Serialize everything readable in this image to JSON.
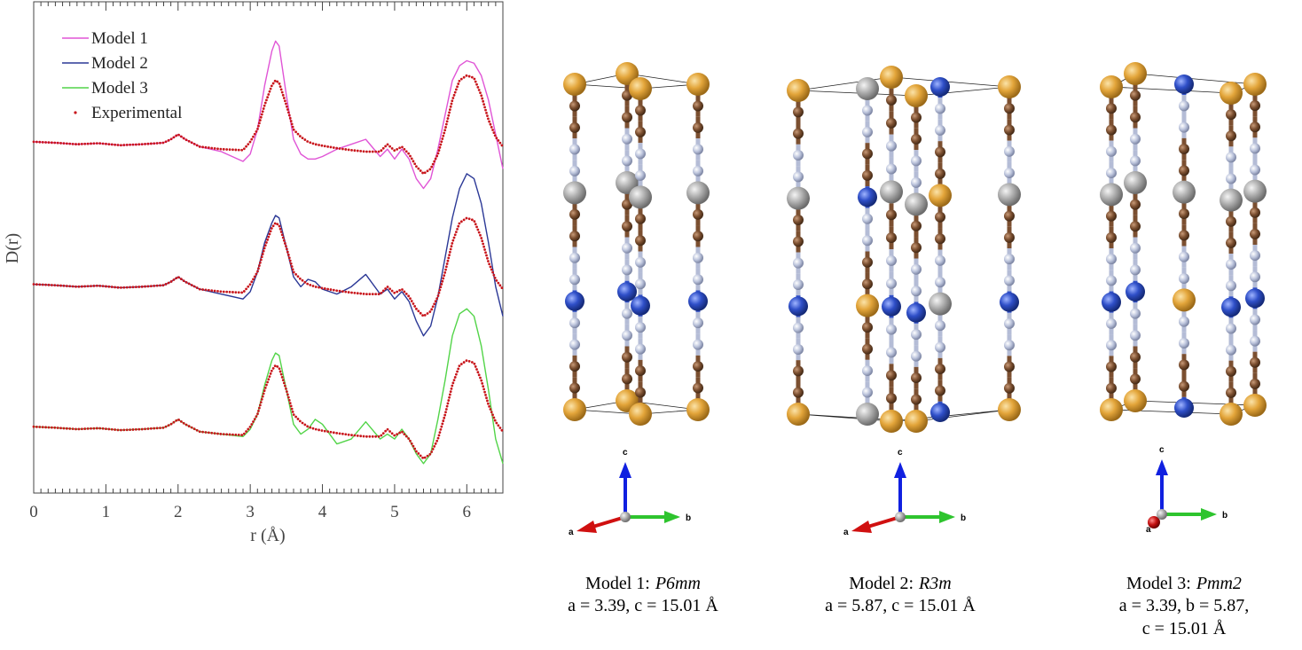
{
  "chart_data": {
    "type": "line",
    "xlabel": "r (Å)",
    "ylabel": "D(r)",
    "xlim": [
      0,
      6.5
    ],
    "ylim": [
      0,
      100
    ],
    "xticks": [
      0,
      1,
      2,
      3,
      4,
      5,
      6
    ],
    "legend": "upper left",
    "x": [
      0,
      0.3,
      0.6,
      0.9,
      1.2,
      1.5,
      1.8,
      1.9,
      2.0,
      2.1,
      2.3,
      2.6,
      2.9,
      3.0,
      3.1,
      3.2,
      3.3,
      3.35,
      3.4,
      3.5,
      3.6,
      3.7,
      3.8,
      3.9,
      4.0,
      4.2,
      4.4,
      4.6,
      4.8,
      4.9,
      5.0,
      5.1,
      5.2,
      5.3,
      5.4,
      5.5,
      5.6,
      5.7,
      5.8,
      5.9,
      6.0,
      6.1,
      6.2,
      6.3,
      6.4,
      6.5
    ],
    "series": [
      {
        "name": "Model 1",
        "color": "#e055d6",
        "style": "line",
        "values": [
          71.5,
          71.3,
          71,
          71.2,
          70.8,
          71,
          71.3,
          72,
          73,
          72,
          70.5,
          69.5,
          67.5,
          69,
          74,
          83,
          90,
          92,
          91,
          81,
          72,
          69,
          68,
          68,
          68.5,
          70,
          71,
          72,
          68.5,
          70,
          68,
          70,
          68,
          64,
          62,
          64,
          70,
          77,
          84,
          87,
          88,
          87.5,
          85,
          80,
          73,
          66
        ]
      },
      {
        "name": "Model 2",
        "color": "#2b3896",
        "style": "line",
        "values": [
          42.5,
          42.3,
          42,
          42.2,
          41.8,
          42,
          42.3,
          43,
          44,
          43,
          41.5,
          40.5,
          39.5,
          41,
          45,
          51,
          55,
          56.5,
          56,
          50,
          44,
          42,
          43.5,
          43,
          41.5,
          40.5,
          42,
          44.5,
          40.5,
          41.5,
          39.5,
          41,
          39,
          35,
          32,
          34,
          40,
          48,
          56,
          62,
          65,
          64,
          59,
          51,
          42,
          36
        ]
      },
      {
        "name": "Model 3",
        "color": "#52d448",
        "style": "line",
        "values": [
          13.5,
          13.3,
          13,
          13.2,
          12.8,
          13,
          13.3,
          14,
          15,
          14,
          12.5,
          12,
          11.5,
          13,
          16,
          22,
          27,
          28.5,
          28,
          21,
          14,
          12,
          13,
          15,
          14,
          10,
          11,
          14.5,
          11,
          12,
          11,
          13,
          11,
          8,
          6,
          8,
          15,
          23,
          32,
          36.5,
          37.5,
          36,
          30,
          21,
          11,
          6
        ]
      },
      {
        "name": "Experimental",
        "color": "#c8161c",
        "style": "dots",
        "values": [
          71.5,
          71.3,
          71,
          71.2,
          70.8,
          71,
          71.3,
          72,
          73,
          72,
          70.5,
          70,
          69.8,
          71.5,
          74,
          79,
          83,
          84,
          83.5,
          79,
          74,
          72.5,
          71.5,
          71,
          70.7,
          70.2,
          69.8,
          69.5,
          69.5,
          71,
          69.7,
          70.5,
          69,
          66.5,
          65,
          66,
          69,
          74,
          80,
          84,
          85,
          84.5,
          81,
          76,
          72.5,
          70.5
        ]
      },
      {
        "color": "#c8161c",
        "style": "dots",
        "values": [
          42.5,
          42.3,
          42,
          42.2,
          41.8,
          42,
          42.3,
          43,
          44,
          43,
          41.5,
          41,
          40.8,
          42.5,
          45,
          50,
          54,
          55,
          54.5,
          50,
          45,
          43.5,
          42.5,
          42,
          41.7,
          41.2,
          40.8,
          40.5,
          40.5,
          42,
          40.7,
          41.5,
          40,
          37.5,
          36,
          37,
          40,
          45,
          51,
          55,
          56,
          55.5,
          52,
          47,
          43.5,
          41.5
        ]
      },
      {
        "color": "#c8161c",
        "style": "dots",
        "values": [
          13.5,
          13.3,
          13,
          13.2,
          12.8,
          13,
          13.3,
          14,
          15,
          14,
          12.5,
          12,
          11.8,
          13.5,
          16,
          21,
          25,
          26,
          25.5,
          21,
          16,
          14.5,
          13.5,
          13,
          12.7,
          12.2,
          11.8,
          11.5,
          11.5,
          13,
          11.7,
          12.5,
          11,
          8.5,
          7,
          8,
          11,
          16,
          22,
          26,
          27,
          26.5,
          23,
          18,
          14.5,
          12.5
        ]
      }
    ]
  },
  "structures": [
    {
      "axes": [
        "a",
        "b",
        "c"
      ],
      "title": "Model 1:",
      "space_group": "P6mm",
      "lattice": [
        "a = 3.39, c = 15.01 Å"
      ]
    },
    {
      "axes": [
        "a",
        "b",
        "c"
      ],
      "title": "Model 2:",
      "space_group": "R3m",
      "lattice": [
        "a = 5.87, c = 15.01 Å"
      ]
    },
    {
      "axes": [
        "a",
        "b",
        "c"
      ],
      "title": "Model 3:",
      "space_group": "Pmm2",
      "lattice": [
        "a = 3.39, b = 5.87,",
        "c = 15.01 Å"
      ]
    }
  ]
}
